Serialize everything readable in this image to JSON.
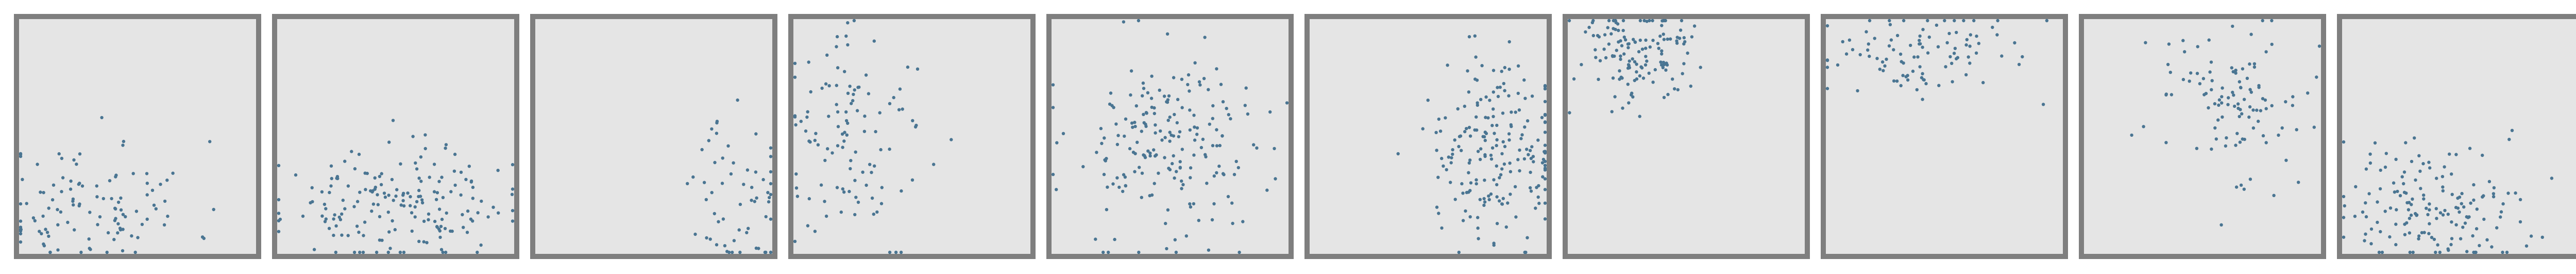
{
  "colors": {
    "panel_background": "#e5e5e5",
    "panel_border": "#7f7f7f",
    "point": "#4a7592",
    "page_background": "#ffffff"
  },
  "chart_data": {
    "type": "scatter",
    "layout": "small-multiples",
    "panel_count": 10,
    "axes_visible": false,
    "grid": false,
    "legend": "none",
    "xlim": [
      0,
      1
    ],
    "ylim": [
      0,
      1
    ],
    "panels": [
      {
        "n": 112,
        "center_x": 0.3,
        "center_y": 0.2,
        "spread_x": 0.22,
        "spread_y": 0.14,
        "seed": 11
      },
      {
        "n": 180,
        "center_x": 0.5,
        "center_y": 0.2,
        "spread_x": 0.24,
        "spread_y": 0.12,
        "seed": 23
      },
      {
        "n": 60,
        "center_x": 0.88,
        "center_y": 0.22,
        "spread_x": 0.1,
        "spread_y": 0.18,
        "seed": 37
      },
      {
        "n": 112,
        "center_x": 0.25,
        "center_y": 0.5,
        "spread_x": 0.16,
        "spread_y": 0.22,
        "seed": 41
      },
      {
        "n": 200,
        "center_x": 0.5,
        "center_y": 0.45,
        "spread_x": 0.22,
        "spread_y": 0.22,
        "seed": 53
      },
      {
        "n": 200,
        "center_x": 0.78,
        "center_y": 0.4,
        "spread_x": 0.14,
        "spread_y": 0.2,
        "seed": 67
      },
      {
        "n": 140,
        "center_x": 0.3,
        "center_y": 0.85,
        "spread_x": 0.14,
        "spread_y": 0.12,
        "seed": 71
      },
      {
        "n": 100,
        "center_x": 0.4,
        "center_y": 0.85,
        "spread_x": 0.22,
        "spread_y": 0.1,
        "seed": 83
      },
      {
        "n": 110,
        "center_x": 0.6,
        "center_y": 0.65,
        "spread_x": 0.2,
        "spread_y": 0.18,
        "seed": 97
      },
      {
        "n": 160,
        "center_x": 0.38,
        "center_y": 0.2,
        "spread_x": 0.2,
        "spread_y": 0.14,
        "seed": 101
      }
    ]
  }
}
